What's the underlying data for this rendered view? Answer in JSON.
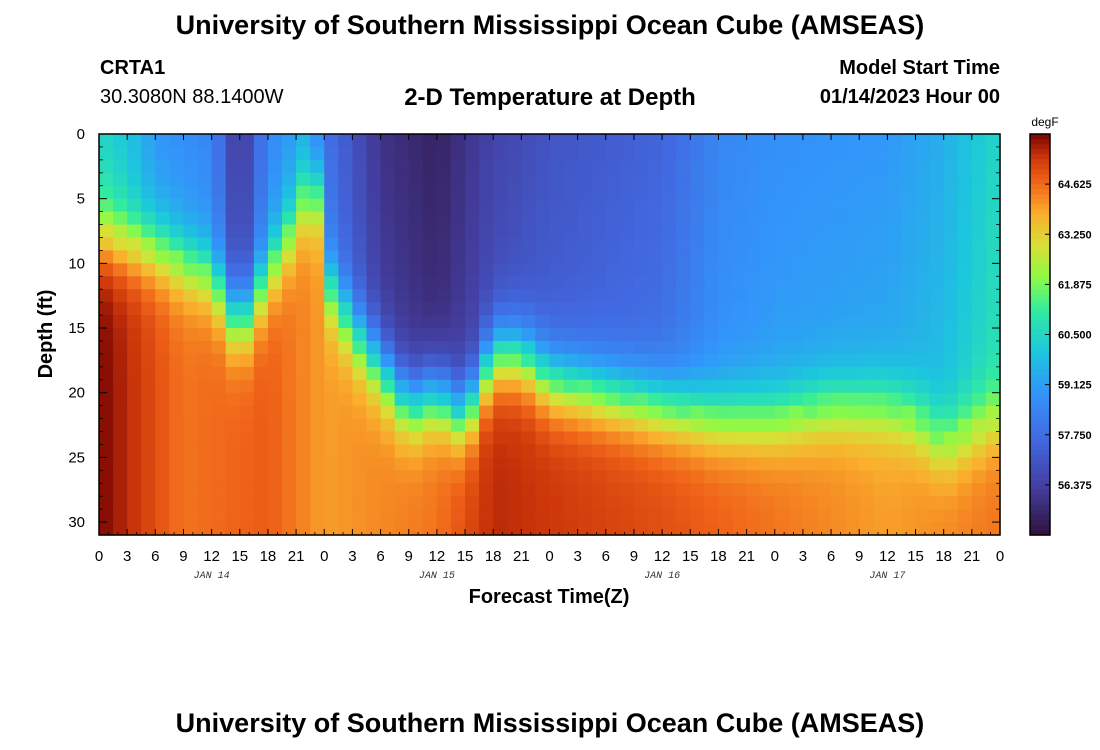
{
  "header": {
    "title": "University of Southern Mississippi Ocean Cube (AMSEAS)",
    "station_id": "CRTA1",
    "coordinates": "30.3080N  88.1400W",
    "subtitle": "2-D Temperature at Depth",
    "model_start_label": "Model Start Time",
    "model_start_value": "01/14/2023 Hour 00"
  },
  "footer": {
    "title": "University of Southern Mississippi Ocean Cube (AMSEAS)"
  },
  "chart_data": {
    "type": "heatmap",
    "title": "2-D Temperature at Depth",
    "xlabel": "Forecast Time(Z)",
    "ylabel": "Depth (ft)",
    "x_hours_range": [
      0,
      96
    ],
    "x_step_hours": 3,
    "x_tick_labels": [
      "0",
      "3",
      "6",
      "9",
      "12",
      "15",
      "18",
      "21",
      "0",
      "3",
      "6",
      "9",
      "12",
      "15",
      "18",
      "21",
      "0",
      "3",
      "6",
      "9",
      "12",
      "15",
      "18",
      "21",
      "0",
      "3",
      "6",
      "9",
      "12",
      "15",
      "18",
      "21",
      "0"
    ],
    "day_labels": [
      {
        "text": "JAN 14",
        "hour": 12
      },
      {
        "text": "JAN 15",
        "hour": 36
      },
      {
        "text": "JAN 16",
        "hour": 60
      },
      {
        "text": "JAN 17",
        "hour": 84
      }
    ],
    "y_range_ft": [
      0,
      31
    ],
    "y_ticks": [
      0,
      5,
      10,
      15,
      20,
      25,
      30
    ],
    "colorbar": {
      "unit": "degF",
      "range": [
        55.0,
        66.0
      ],
      "labels": [
        "64.625",
        "63.250",
        "61.875",
        "60.500",
        "59.125",
        "57.750",
        "56.375"
      ]
    },
    "thermocline_depth_ft": [
      {
        "hour": 0,
        "depth": 8
      },
      {
        "hour": 6,
        "depth": 9
      },
      {
        "hour": 9,
        "depth": 10
      },
      {
        "hour": 12,
        "depth": 11
      },
      {
        "hour": 15,
        "depth": 15
      },
      {
        "hour": 18,
        "depth": 11
      },
      {
        "hour": 21,
        "depth": 7
      },
      {
        "hour": 23,
        "depth": 3
      },
      {
        "hour": 24,
        "depth": 11
      },
      {
        "hour": 27,
        "depth": 15
      },
      {
        "hour": 30,
        "depth": 18
      },
      {
        "hour": 33,
        "depth": 21
      },
      {
        "hour": 36,
        "depth": 20
      },
      {
        "hour": 39,
        "depth": 22
      },
      {
        "hour": 42,
        "depth": 17
      },
      {
        "hour": 45,
        "depth": 17
      },
      {
        "hour": 48,
        "depth": 19
      },
      {
        "hour": 54,
        "depth": 20
      },
      {
        "hour": 60,
        "depth": 21
      },
      {
        "hour": 66,
        "depth": 22
      },
      {
        "hour": 72,
        "depth": 22
      },
      {
        "hour": 78,
        "depth": 21
      },
      {
        "hour": 84,
        "depth": 21
      },
      {
        "hour": 87,
        "depth": 22
      },
      {
        "hour": 90,
        "depth": 24
      },
      {
        "hour": 93,
        "depth": 23
      },
      {
        "hour": 96,
        "depth": 22
      }
    ],
    "surface_temp_degF": [
      {
        "hour": 0,
        "temp": 60.5
      },
      {
        "hour": 3,
        "temp": 60.0
      },
      {
        "hour": 6,
        "temp": 59.0
      },
      {
        "hour": 12,
        "temp": 58.5
      },
      {
        "hour": 15,
        "temp": 56.0
      },
      {
        "hour": 18,
        "temp": 58.5
      },
      {
        "hour": 22,
        "temp": 59.5
      },
      {
        "hour": 24,
        "temp": 58.0
      },
      {
        "hour": 30,
        "temp": 56.0
      },
      {
        "hour": 36,
        "temp": 55.5
      },
      {
        "hour": 42,
        "temp": 56.5
      },
      {
        "hour": 48,
        "temp": 57.0
      },
      {
        "hour": 60,
        "temp": 57.5
      },
      {
        "hour": 66,
        "temp": 58.5
      },
      {
        "hour": 72,
        "temp": 58.8
      },
      {
        "hour": 84,
        "temp": 59.0
      },
      {
        "hour": 90,
        "temp": 59.5
      },
      {
        "hour": 96,
        "temp": 60.5
      }
    ],
    "bottom_temp_degF": [
      {
        "hour": 0,
        "temp": 66.0
      },
      {
        "hour": 9,
        "temp": 64.5
      },
      {
        "hour": 18,
        "temp": 64.8
      },
      {
        "hour": 24,
        "temp": 64.0
      },
      {
        "hour": 36,
        "temp": 64.5
      },
      {
        "hour": 42,
        "temp": 65.5
      },
      {
        "hour": 60,
        "temp": 65.0
      },
      {
        "hour": 72,
        "temp": 64.5
      },
      {
        "hour": 84,
        "temp": 64.0
      },
      {
        "hour": 96,
        "temp": 64.5
      }
    ]
  }
}
